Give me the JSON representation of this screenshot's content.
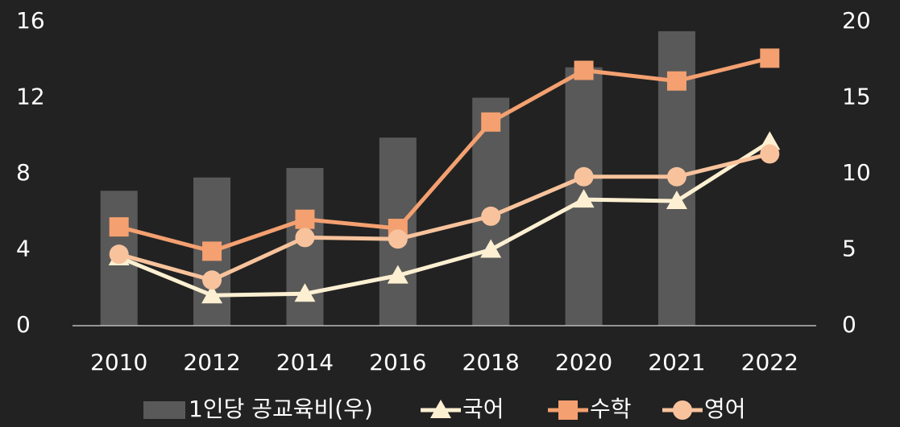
{
  "chart_data": {
    "type": "bar_line",
    "categories": [
      "2010",
      "2012",
      "2014",
      "2016",
      "2018",
      "2020",
      "2021",
      "2022"
    ],
    "series": [
      {
        "name": "1인당 공교육비(우)",
        "type": "bar",
        "axis": "y",
        "color": "#595959",
        "values": [
          7.1,
          7.8,
          8.3,
          9.9,
          12.0,
          13.6,
          15.5,
          null
        ]
      },
      {
        "name": "국어",
        "type": "line",
        "marker": "triangle",
        "axis": "y2",
        "color": "#fdf0d2",
        "values": [
          4.5,
          2.0,
          2.1,
          3.3,
          5.0,
          8.3,
          8.2,
          12.1
        ]
      },
      {
        "name": "수학",
        "type": "line",
        "marker": "square",
        "axis": "y2",
        "color": "#f4a070",
        "values": [
          6.5,
          4.9,
          7.0,
          6.4,
          13.4,
          16.8,
          16.1,
          17.6
        ]
      },
      {
        "name": "영어",
        "type": "line",
        "marker": "circle",
        "axis": "y2",
        "color": "#f8c39c",
        "values": [
          4.7,
          3.0,
          5.8,
          5.7,
          7.2,
          9.8,
          9.8,
          11.3
        ]
      }
    ],
    "ylim": [
      0,
      16
    ],
    "yticks": [
      0,
      4,
      8,
      12,
      16
    ],
    "y2lim": [
      0,
      20
    ],
    "y2ticks": [
      0,
      5,
      10,
      15,
      20
    ]
  }
}
